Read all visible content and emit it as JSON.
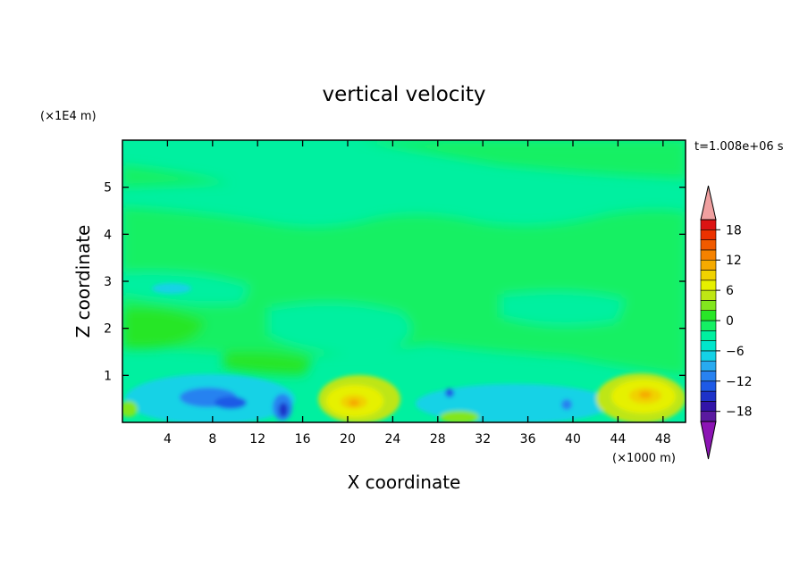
{
  "chart_data": {
    "type": "heatmap",
    "title": "vertical velocity",
    "xlabel": "X coordinate",
    "ylabel": "Z coordinate",
    "x_unit": "(×1000 m)",
    "y_unit": "(×1E4 m)",
    "time_label": "t=1.008e+06 s",
    "xlim": [
      0,
      50
    ],
    "ylim": [
      0,
      6
    ],
    "x_ticks": [
      4,
      8,
      12,
      16,
      20,
      24,
      28,
      32,
      36,
      40,
      44,
      48
    ],
    "y_ticks": [
      1,
      2,
      3,
      4,
      5
    ],
    "grid": false,
    "colorbar": {
      "position": "right",
      "levels": [
        -20,
        -18,
        -16,
        -14,
        -12,
        -10,
        -8,
        -6,
        -4,
        -2,
        0,
        2,
        4,
        6,
        8,
        10,
        12,
        14,
        16,
        18,
        20
      ],
      "tick_labels": [
        "18",
        "12",
        "6",
        "0",
        "−6",
        "−12",
        "−18"
      ],
      "tick_values": [
        18,
        12,
        6,
        0,
        -6,
        -12,
        -18
      ],
      "colors": [
        "#5a1aa0",
        "#3214a8",
        "#1e32c8",
        "#1e5ae6",
        "#2882f0",
        "#28aaf0",
        "#14d2e6",
        "#00e6cc",
        "#00f0a0",
        "#14f064",
        "#28e628",
        "#82e61e",
        "#bee614",
        "#e6f000",
        "#f0d200",
        "#f5aa00",
        "#f58200",
        "#f05a00",
        "#eb3200",
        "#dc1414"
      ],
      "under_color": "#8c14b4",
      "over_color": "#f0a0a0"
    },
    "features": [
      {
        "x": 6.5,
        "z": 0.55,
        "value": -10
      },
      {
        "x": 8.5,
        "z": 0.45,
        "value": -9
      },
      {
        "x": 14.3,
        "z": 0.3,
        "value": -12
      },
      {
        "x": 21.0,
        "z": 0.45,
        "value": 9
      },
      {
        "x": 29.5,
        "z": 0.55,
        "value": -6
      },
      {
        "x": 30.0,
        "z": 0.1,
        "value": 3
      },
      {
        "x": 39.3,
        "z": 0.4,
        "value": -8
      },
      {
        "x": 46.5,
        "z": 0.6,
        "value": 10
      },
      {
        "x": 6.0,
        "z": 2.8,
        "value": -2
      }
    ]
  }
}
